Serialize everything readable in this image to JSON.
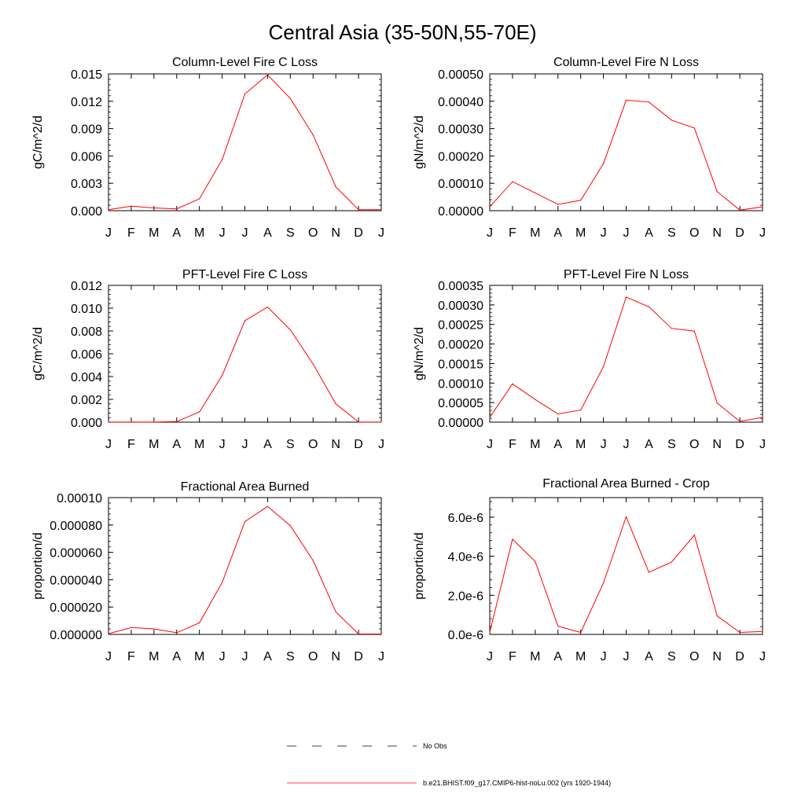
{
  "figure_title": "Central Asia (35-50N,55-70E)",
  "colors": {
    "model_line": "#ff0000",
    "obs_line": "#000000",
    "axes": "#000000"
  },
  "legend": {
    "obs_label": "No Obs",
    "model_label": "b.e21.BHIST.f09_g17.CMIP6-hist-noLu.002 (yrs 1920-1944)"
  },
  "chart_data": [
    {
      "type": "line",
      "title": "Column-Level Fire C Loss",
      "ylabel": "gC/m^2/d",
      "xlabel": "",
      "categories": [
        "J",
        "F",
        "M",
        "A",
        "M",
        "J",
        "J",
        "A",
        "S",
        "O",
        "N",
        "D",
        "J"
      ],
      "ylim": [
        0,
        0.015
      ],
      "yticks": [
        0,
        0.003,
        0.006,
        0.009,
        0.012,
        0.015
      ],
      "ytick_labels": [
        "0.000",
        "0.003",
        "0.006",
        "0.009",
        "0.012",
        "0.015"
      ],
      "series": [
        {
          "values": [
            0.0001,
            0.0005,
            0.0003,
            0.0002,
            0.0013,
            0.0056,
            0.0128,
            0.0149,
            0.0123,
            0.0083,
            0.0026,
            0.0001,
            0.0001
          ]
        }
      ],
      "grid": false
    },
    {
      "type": "line",
      "title": "Column-Level Fire N Loss",
      "ylabel": "gN/m^2/d",
      "xlabel": "",
      "categories": [
        "J",
        "F",
        "M",
        "A",
        "M",
        "J",
        "J",
        "A",
        "S",
        "O",
        "N",
        "D",
        "J"
      ],
      "ylim": [
        0,
        0.0005
      ],
      "yticks": [
        0,
        0.0001,
        0.0002,
        0.0003,
        0.0004,
        0.0005
      ],
      "ytick_labels": [
        "0.00000",
        "0.00010",
        "0.00020",
        "0.00030",
        "0.00040",
        "0.00050"
      ],
      "series": [
        {
          "values": [
            1.4e-05,
            0.000106,
            6.5e-05,
            2.3e-05,
            3.8e-05,
            0.000172,
            0.000404,
            0.000397,
            0.000331,
            0.000302,
            7e-05,
            2e-06,
            1.4e-05
          ]
        }
      ],
      "grid": false
    },
    {
      "type": "line",
      "title": "PFT-Level Fire C Loss",
      "ylabel": "gC/m^2/d",
      "xlabel": "",
      "categories": [
        "J",
        "F",
        "M",
        "A",
        "M",
        "J",
        "J",
        "A",
        "S",
        "O",
        "N",
        "D",
        "J"
      ],
      "ylim": [
        0,
        0.012
      ],
      "yticks": [
        0,
        0.002,
        0.004,
        0.006,
        0.008,
        0.01,
        0.012
      ],
      "ytick_labels": [
        "0.000",
        "0.002",
        "0.004",
        "0.006",
        "0.008",
        "0.010",
        "0.012"
      ],
      "series": [
        {
          "values": [
            1e-05,
            1e-05,
            1e-05,
            5e-05,
            0.0009,
            0.0041,
            0.0089,
            0.0101,
            0.0081,
            0.0051,
            0.0016,
            1e-05,
            1e-05
          ]
        }
      ],
      "grid": false
    },
    {
      "type": "line",
      "title": "PFT-Level Fire N Loss",
      "ylabel": "gN/m^2/d",
      "xlabel": "",
      "categories": [
        "J",
        "F",
        "M",
        "A",
        "M",
        "J",
        "J",
        "A",
        "S",
        "O",
        "N",
        "D",
        "J"
      ],
      "ylim": [
        0,
        0.00035
      ],
      "yticks": [
        0,
        5e-05,
        0.0001,
        0.00015,
        0.0002,
        0.00025,
        0.0003,
        0.00035
      ],
      "ytick_labels": [
        "0.00000",
        "0.00005",
        "0.00010",
        "0.00015",
        "0.00020",
        "0.00025",
        "0.00030",
        "0.00035"
      ],
      "series": [
        {
          "values": [
            1.2e-05,
            9.8e-05,
            5.8e-05,
            2.1e-05,
            3.1e-05,
            0.000142,
            0.00032,
            0.000295,
            0.00024,
            0.000233,
            4.9e-05,
            2e-06,
            1.2e-05
          ]
        }
      ],
      "grid": false
    },
    {
      "type": "line",
      "title": "Fractional Area Burned",
      "ylabel": "proportion/d",
      "xlabel": "",
      "categories": [
        "J",
        "F",
        "M",
        "A",
        "M",
        "J",
        "J",
        "A",
        "S",
        "O",
        "N",
        "D",
        "J"
      ],
      "ylim": [
        0,
        0.0001
      ],
      "yticks": [
        0,
        2e-05,
        4e-05,
        6e-05,
        8e-05,
        0.0001
      ],
      "ytick_labels": [
        "0.000000",
        "0.000020",
        "0.000040",
        "0.000060",
        "0.000080",
        "0.00010"
      ],
      "series": [
        {
          "values": [
            5e-07,
            5e-06,
            4e-06,
            1.2e-06,
            8.5e-06,
            3.8e-05,
            8.25e-05,
            9.35e-05,
            7.95e-05,
            5.4e-05,
            1.65e-05,
            3e-07,
            3e-07
          ]
        }
      ],
      "grid": false
    },
    {
      "type": "line",
      "title": "Fractional Area Burned - Crop",
      "ylabel": "proportion/d",
      "xlabel": "",
      "categories": [
        "J",
        "F",
        "M",
        "A",
        "M",
        "J",
        "J",
        "A",
        "S",
        "O",
        "N",
        "D",
        "J"
      ],
      "ylim": [
        0,
        7e-06
      ],
      "yticks": [
        0,
        2e-06,
        4e-06,
        6e-06
      ],
      "ytick_labels": [
        "0.0e-6",
        "2.0e-6",
        "4.0e-6",
        "6.0e-6"
      ],
      "series": [
        {
          "values": [
            1e-07,
            4.87e-06,
            3.73e-06,
            4.2e-07,
            1e-07,
            2.63e-06,
            6.02e-06,
            3.18e-06,
            3.7e-06,
            5.08e-06,
            9.5e-07,
            1e-07,
            1.5e-07
          ]
        }
      ],
      "grid": false
    }
  ]
}
